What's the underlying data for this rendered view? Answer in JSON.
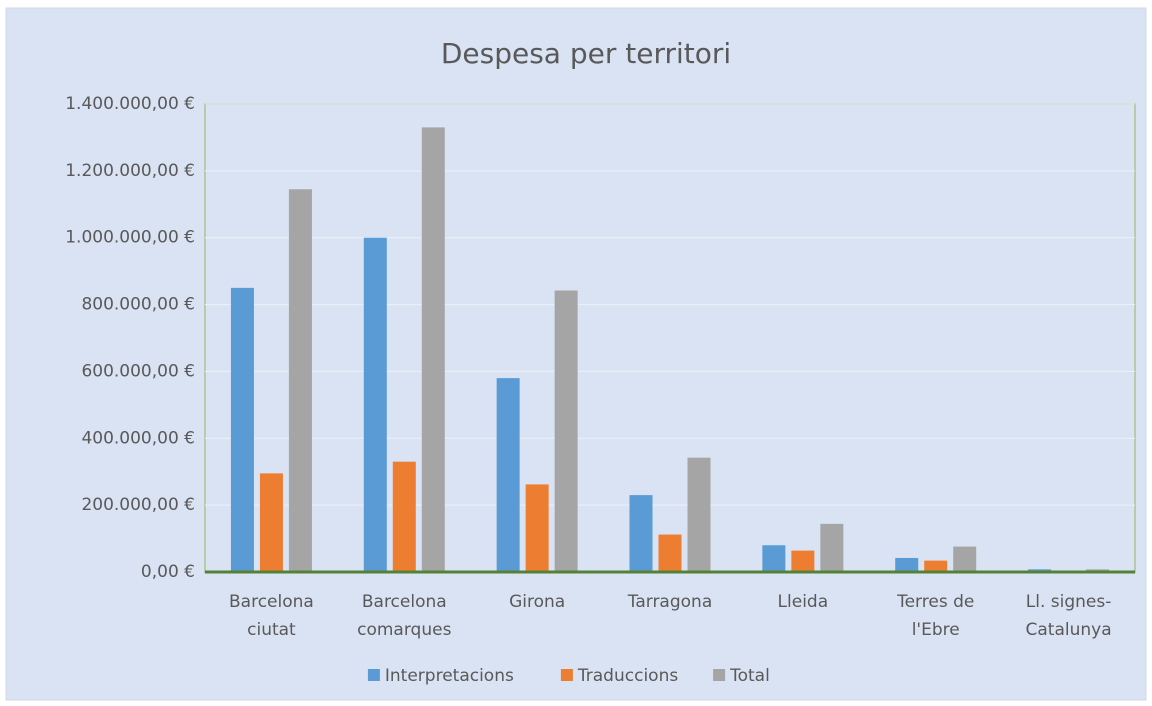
{
  "chart_data": {
    "type": "bar",
    "title": "Despesa per territori",
    "categories": [
      "Barcelona\nciutat",
      "Barcelona\ncomarques",
      "Girona",
      "Tarragona",
      "Lleida",
      "Terres de\nl'Ebre",
      "Ll. signes-\nCatalunya"
    ],
    "series": [
      {
        "name": "Interpretacions",
        "color": "#5b9bd5",
        "values": [
          850000,
          1000000,
          580000,
          230000,
          80000,
          42000,
          8000
        ]
      },
      {
        "name": "Traduccions",
        "color": "#ed7d31",
        "values": [
          295000,
          330000,
          262000,
          112000,
          64000,
          34000,
          0
        ]
      },
      {
        "name": "Total",
        "color": "#a5a5a5",
        "values": [
          1145000,
          1330000,
          842000,
          342000,
          144000,
          76000,
          8000
        ]
      }
    ],
    "ylim": [
      0,
      1400000
    ],
    "yticks": [
      {
        "value": 0,
        "label": "0,00 €"
      },
      {
        "value": 200000,
        "label": "200.000,00 €"
      },
      {
        "value": 400000,
        "label": "400.000,00 €"
      },
      {
        "value": 600000,
        "label": "600.000,00 €"
      },
      {
        "value": 800000,
        "label": "800.000,00 €"
      },
      {
        "value": 1000000,
        "label": "1.000.000,00 €"
      },
      {
        "value": 1200000,
        "label": "1.200.000,00 €"
      },
      {
        "value": 1400000,
        "label": "1.400.000,00 €"
      }
    ],
    "grid": true,
    "legend": "bottom"
  }
}
